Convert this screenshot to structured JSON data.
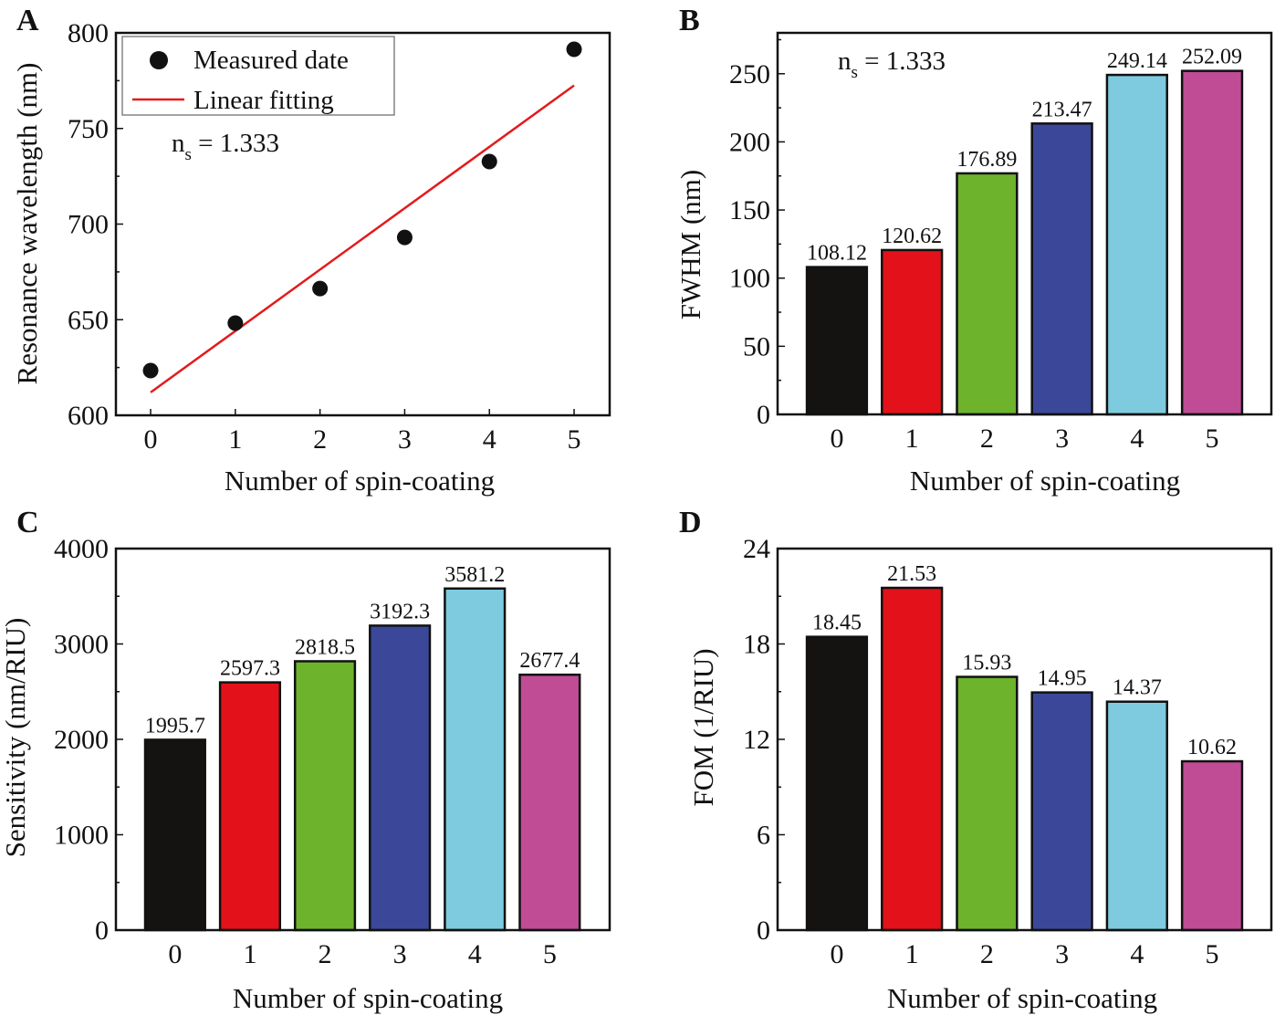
{
  "chart_data": [
    {
      "panel": "A",
      "type": "scatter",
      "xlabel": "Number of spin-coating",
      "ylabel": "Resonance wavelength (nm)",
      "xlim": [
        -0.41,
        5.42
      ],
      "ylim": [
        600,
        800
      ],
      "xticks": [
        "0",
        "1",
        "2",
        "3",
        "4",
        "5"
      ],
      "yticks": [
        "600",
        "650",
        "700",
        "750",
        "800"
      ],
      "annotation": {
        "main": "n",
        "sub": "s",
        "rest": " = 1.333"
      },
      "legend_position": "top-left",
      "series": [
        {
          "name": "Measured date",
          "kind": "points",
          "color": "#111111",
          "x": [
            0,
            1,
            2,
            3,
            4,
            5
          ],
          "y": [
            623.4,
            648.2,
            666.3,
            693.0,
            732.7,
            791.4
          ]
        },
        {
          "name": "Linear fitting",
          "kind": "line",
          "color": "#e31a1c",
          "x": [
            0,
            5
          ],
          "y": [
            612,
            772.5
          ]
        }
      ]
    },
    {
      "panel": "B",
      "type": "bar",
      "xlabel": "Number of spin-coating",
      "ylabel": "FWHM (nm)",
      "xlim": [
        -0.79,
        5.79
      ],
      "ylim": [
        0,
        280
      ],
      "categories": [
        "0",
        "1",
        "2",
        "3",
        "4",
        "5"
      ],
      "yticks": [
        "0",
        "50",
        "100",
        "150",
        "200",
        "250"
      ],
      "values": [
        108.12,
        120.62,
        176.89,
        213.47,
        249.14,
        252.09
      ],
      "labels": [
        "108.12",
        "120.62",
        "176.89",
        "213.47",
        "249.14",
        "252.09"
      ],
      "colors": [
        "#141311",
        "#e3121a",
        "#6db32c",
        "#3b4899",
        "#7ecbdf",
        "#bf4c95"
      ],
      "annotation": {
        "main": "n",
        "sub": "s",
        "rest": " = 1.333"
      }
    },
    {
      "panel": "C",
      "type": "bar",
      "xlabel": "Number of spin-coating",
      "ylabel": "Sensitivity (nm/RIU)",
      "xlim": [
        -0.79,
        5.8
      ],
      "ylim": [
        0,
        4000
      ],
      "categories": [
        "0",
        "1",
        "2",
        "3",
        "4",
        "5"
      ],
      "yticks": [
        "0",
        "1000",
        "2000",
        "3000",
        "4000"
      ],
      "values": [
        1995.7,
        2597.3,
        2818.5,
        3192.3,
        3581.2,
        2677.4
      ],
      "labels": [
        "1995.7",
        "2597.3",
        "2818.5",
        "3192.3",
        "3581.2",
        "2677.4"
      ],
      "colors": [
        "#141311",
        "#e3121a",
        "#6db32c",
        "#3b4899",
        "#7ecbdf",
        "#bf4c95"
      ]
    },
    {
      "panel": "D",
      "type": "bar",
      "xlabel": "Number of spin-coating",
      "ylabel": "FOM (1/RIU)",
      "xlim": [
        -0.79,
        5.79
      ],
      "ylim": [
        0,
        24
      ],
      "categories": [
        "0",
        "1",
        "2",
        "3",
        "4",
        "5"
      ],
      "yticks": [
        "0",
        "6",
        "12",
        "18",
        "24"
      ],
      "values": [
        18.45,
        21.53,
        15.93,
        14.95,
        14.37,
        10.62
      ],
      "labels": [
        "18.45",
        "21.53",
        "15.93",
        "14.95",
        "14.37",
        "10.62"
      ],
      "colors": [
        "#141311",
        "#e3121a",
        "#6db32c",
        "#3b4899",
        "#7ecbdf",
        "#bf4c95"
      ]
    }
  ]
}
